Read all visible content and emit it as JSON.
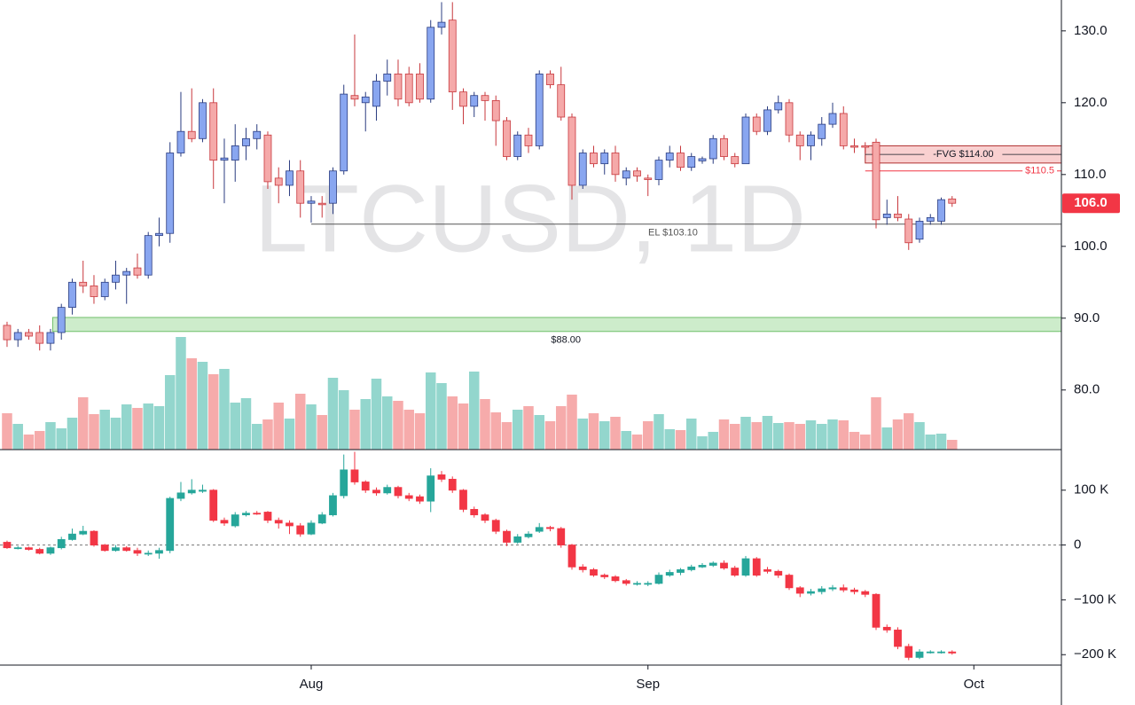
{
  "chart_data": [
    {
      "type": "candlestick",
      "title": "LTCUSD, 1D",
      "x": [
        0,
        1,
        2,
        3,
        4,
        5,
        6,
        7,
        8,
        9,
        10,
        11,
        12,
        13,
        14,
        15,
        16,
        17,
        18,
        19,
        20,
        21,
        22,
        23,
        24,
        25,
        26,
        27,
        28,
        29,
        30,
        31,
        32,
        33,
        34,
        35,
        36,
        37,
        38,
        39,
        40,
        41,
        42,
        43,
        44,
        45,
        46,
        47,
        48,
        49,
        50,
        51,
        52,
        53,
        54,
        55,
        56,
        57,
        58,
        59,
        60,
        61,
        62,
        63,
        64,
        65,
        66,
        67,
        68,
        69,
        70,
        71,
        72,
        73,
        74,
        75,
        76,
        77,
        78,
        79,
        80,
        81,
        82,
        83,
        84,
        85,
        86,
        87
      ],
      "open": [
        89,
        87,
        88,
        88,
        86.5,
        88,
        91.5,
        95,
        94.5,
        93,
        95,
        96,
        97,
        96,
        101.5,
        101.8,
        113,
        116,
        115,
        120,
        112,
        112,
        114,
        115,
        115.5,
        109.5,
        108.5,
        110.5,
        106,
        106,
        106,
        110.5,
        121,
        120,
        119.5,
        123,
        124,
        124,
        124,
        120.5,
        130.5,
        131.5,
        121.5,
        119.5,
        121,
        120.3,
        117.5,
        112.5,
        115.5,
        114,
        124,
        122.5,
        118,
        108.5,
        113,
        111.5,
        113,
        109.5,
        110.5,
        109.5,
        109.3,
        112,
        113,
        111,
        111.9,
        112.2,
        115,
        112.5,
        111.5,
        118,
        116,
        119,
        120,
        115.5,
        114,
        115,
        117,
        118.5,
        114,
        114,
        114.5,
        104,
        104.5,
        103.8,
        101,
        103.5,
        103.5,
        106.6
      ],
      "high": [
        89.5,
        88.5,
        88.5,
        89,
        88.5,
        92,
        95.5,
        98,
        96,
        95.5,
        98,
        97,
        99,
        102,
        104,
        114.5,
        121.5,
        122,
        120.5,
        122,
        115,
        117,
        116.5,
        117,
        116,
        111,
        112,
        112,
        107,
        107,
        111,
        122.5,
        129.5,
        121.5,
        124,
        126,
        126,
        125,
        125.5,
        131.5,
        134,
        134,
        122,
        121.5,
        121.5,
        121,
        118,
        116,
        116.5,
        124.5,
        124.5,
        125,
        118.5,
        113.5,
        114,
        113.5,
        114,
        111,
        111,
        110,
        112.5,
        114,
        114,
        113,
        112.5,
        115.5,
        115.5,
        113,
        118.5,
        118.5,
        119.5,
        121,
        120.5,
        116,
        116,
        118,
        120,
        119.5,
        115,
        114.5,
        115,
        106.5,
        107,
        104.5,
        104,
        104.5,
        106.8,
        107
      ],
      "low": [
        86,
        86,
        87,
        85.5,
        85.5,
        87,
        90.5,
        93.5,
        92,
        92.5,
        94,
        92,
        95.5,
        95.5,
        100,
        100.5,
        112.5,
        114.5,
        114.5,
        108,
        106,
        109,
        112,
        113.5,
        108,
        106,
        107,
        104,
        103.3,
        104,
        104.5,
        110,
        119.5,
        116,
        117.5,
        121,
        119.5,
        119.5,
        120,
        120,
        129.5,
        119,
        117,
        118,
        117.5,
        114,
        112,
        112,
        113,
        113.5,
        122,
        117.5,
        106.5,
        108,
        111,
        110,
        109,
        108.5,
        109,
        107,
        108.5,
        111,
        110.5,
        110.5,
        111.5,
        111.5,
        112,
        111,
        111.5,
        115.5,
        115.5,
        118.5,
        114.5,
        112,
        112,
        114,
        116.5,
        113.5,
        113,
        113,
        102.5,
        103,
        103.5,
        99.5,
        100.5,
        103,
        103,
        105.5
      ],
      "close": [
        87,
        88,
        87.5,
        86.5,
        88,
        91.5,
        95,
        94.5,
        93,
        95,
        96,
        96.5,
        96,
        101.5,
        101.8,
        113,
        116,
        115,
        120,
        112,
        112.3,
        114,
        115,
        116,
        109,
        108.5,
        110.5,
        106,
        106.3,
        105.8,
        110.5,
        121.2,
        120.5,
        120.8,
        123,
        124,
        120.5,
        120,
        120.5,
        130.5,
        131.2,
        121.5,
        119.5,
        121,
        120.3,
        117.5,
        112.5,
        115.5,
        114,
        124,
        122.5,
        118,
        108.5,
        113,
        111.5,
        113,
        110,
        110.5,
        109.8,
        109.3,
        112,
        113,
        111,
        112.5,
        112.2,
        115,
        112.5,
        111.5,
        118,
        116,
        119,
        120,
        115.5,
        114,
        115.5,
        117,
        118.5,
        114,
        113.8,
        113.8,
        103.7,
        104.5,
        104,
        100.5,
        103.5,
        104,
        106.5,
        106.0
      ],
      "volume": [
        41,
        29,
        17,
        21,
        31,
        24,
        36,
        59,
        40,
        45,
        36,
        51,
        47,
        52,
        49,
        84,
        127,
        103,
        99,
        85,
        91,
        53,
        58,
        29,
        34,
        53,
        35,
        63,
        51,
        39,
        81,
        67,
        45,
        57,
        80,
        60,
        55,
        45,
        41,
        87,
        75,
        60,
        52,
        88,
        57,
        42,
        31,
        45,
        49,
        39,
        32,
        49,
        62,
        35,
        41,
        32,
        37,
        21,
        17,
        32,
        40,
        23,
        22,
        35,
        15,
        20,
        34,
        29,
        37,
        31,
        38,
        30,
        31,
        29,
        33,
        29,
        34,
        33,
        20,
        17,
        59,
        25,
        34,
        41,
        31,
        17,
        18,
        11
      ],
      "up_color": "#89a6f0",
      "up_border": "#2a3c80",
      "down_color": "#f5a9a9",
      "down_border": "#c8383d",
      "volume_up_color": "#93d6cd",
      "volume_down_color": "#f6abab",
      "xlim": [
        -0.65,
        97.06
      ],
      "ylim": [
        71.7,
        134.3
      ],
      "yticks": [
        {
          "value": 80,
          "label": "80.0"
        },
        {
          "value": 90,
          "label": "90.0"
        },
        {
          "value": 100,
          "label": "100.0"
        },
        {
          "value": 110,
          "label": "110.0"
        },
        {
          "value": 120,
          "label": "120.0"
        },
        {
          "value": 130,
          "label": "130.0"
        }
      ],
      "zones": [
        {
          "label": "-FVG $114.00",
          "value": 114,
          "low": 111.6,
          "high": 114,
          "start": 79,
          "color": "#f9d0d0",
          "edge": "#b03030"
        },
        {
          "label": "$88.00",
          "value": 88,
          "low": 88.15,
          "high": 90.1,
          "start": 4.2,
          "color": "#cdeccb",
          "edge": "#6fbf6a"
        }
      ],
      "lines": [
        {
          "label": "$110.5",
          "value": 110.5,
          "start": 79,
          "color": "#f23645"
        },
        {
          "label": "EL $103.10",
          "value": 103.1,
          "start": 28,
          "color": "#555555"
        }
      ],
      "last_price": {
        "value": 106,
        "label": "106.0",
        "color": "#f23645"
      },
      "grid": false
    },
    {
      "type": "candlestick",
      "x": [
        0,
        1,
        2,
        3,
        4,
        5,
        6,
        7,
        8,
        9,
        10,
        11,
        12,
        13,
        14,
        15,
        16,
        17,
        18,
        19,
        20,
        21,
        22,
        23,
        24,
        25,
        26,
        27,
        28,
        29,
        30,
        31,
        32,
        33,
        34,
        35,
        36,
        37,
        38,
        39,
        40,
        41,
        42,
        43,
        44,
        45,
        46,
        47,
        48,
        49,
        50,
        51,
        52,
        53,
        54,
        55,
        56,
        57,
        58,
        59,
        60,
        61,
        62,
        63,
        64,
        65,
        66,
        67,
        68,
        69,
        70,
        71,
        72,
        73,
        74,
        75,
        76,
        77,
        78,
        79,
        80,
        81,
        82,
        83,
        84,
        85,
        86,
        87
      ],
      "open": [
        5000,
        -5000,
        -5000,
        -8000,
        -15000,
        -5000,
        10000,
        20000,
        25000,
        0,
        -10000,
        -5000,
        -10000,
        -15000,
        -15000,
        -10000,
        85000,
        95000,
        98000,
        100000,
        45000,
        35000,
        55000,
        58000,
        60000,
        45000,
        40000,
        35000,
        20000,
        40000,
        55000,
        90000,
        137000,
        115000,
        100000,
        95000,
        105000,
        90000,
        88000,
        80000,
        128000,
        120000,
        100000,
        65000,
        55000,
        45000,
        25000,
        5000,
        15000,
        25000,
        32000,
        30000,
        0,
        -40000,
        -45000,
        -55000,
        -58000,
        -65000,
        -70000,
        -70000,
        -70000,
        -55000,
        -50000,
        -45000,
        -40000,
        -37000,
        -33000,
        -42000,
        -55000,
        -25000,
        -45000,
        -48000,
        -55000,
        -78000,
        -88000,
        -85000,
        -80000,
        -78000,
        -82000,
        -85000,
        -90000,
        -150000,
        -155000,
        -185000,
        -205000,
        -195000,
        -195000,
        -195000
      ],
      "high": [
        8000,
        -2000,
        -3000,
        -5000,
        -3000,
        15000,
        30000,
        35000,
        27000,
        2000,
        0,
        -2000,
        -5000,
        -10000,
        -5000,
        88000,
        115000,
        120000,
        110000,
        102000,
        50000,
        60000,
        62000,
        62000,
        62000,
        50000,
        45000,
        40000,
        45000,
        60000,
        95000,
        165000,
        170000,
        118000,
        105000,
        110000,
        108000,
        95000,
        92000,
        140000,
        135000,
        125000,
        102000,
        70000,
        58000,
        48000,
        28000,
        20000,
        25000,
        40000,
        35000,
        33000,
        2000,
        -35000,
        -42000,
        -52000,
        -55000,
        -62000,
        -66000,
        -66000,
        -50000,
        -45000,
        -42000,
        -36000,
        -33000,
        -30000,
        -28000,
        -38000,
        -20000,
        -22000,
        -40000,
        -45000,
        -52000,
        -75000,
        -80000,
        -75000,
        -73000,
        -72000,
        -78000,
        -82000,
        -88000,
        -145000,
        -150000,
        -180000,
        -190000,
        -192000,
        -192000,
        -192000
      ],
      "low": [
        -7000,
        -8000,
        -10000,
        -17000,
        -18000,
        -8000,
        8000,
        18000,
        -3000,
        -12000,
        -12000,
        -12000,
        -20000,
        -20000,
        -25000,
        -15000,
        80000,
        92000,
        95000,
        42000,
        35000,
        32000,
        52000,
        55000,
        40000,
        30000,
        20000,
        15000,
        18000,
        38000,
        52000,
        85000,
        110000,
        95000,
        90000,
        92000,
        85000,
        80000,
        75000,
        60000,
        115000,
        95000,
        60000,
        50000,
        40000,
        20000,
        -2000,
        2000,
        12000,
        22000,
        25000,
        -5000,
        -45000,
        -50000,
        -58000,
        -62000,
        -68000,
        -74000,
        -74000,
        -75000,
        -72000,
        -58000,
        -55000,
        -48000,
        -42000,
        -40000,
        -45000,
        -58000,
        -58000,
        -58000,
        -52000,
        -60000,
        -82000,
        -95000,
        -92000,
        -90000,
        -84000,
        -86000,
        -90000,
        -95000,
        -155000,
        -160000,
        -190000,
        -210000,
        -208000,
        -198000,
        -198000,
        -200000
      ],
      "close": [
        -5000,
        -5000,
        -8000,
        -15000,
        -5000,
        10000,
        20000,
        25000,
        0,
        -10000,
        -5000,
        -10000,
        -15000,
        -15000,
        -10000,
        85000,
        95000,
        100000,
        100000,
        45000,
        40000,
        55000,
        58000,
        57000,
        45000,
        40000,
        35000,
        20000,
        40000,
        55000,
        90000,
        137000,
        115000,
        100000,
        95000,
        105000,
        90000,
        85000,
        80000,
        126000,
        120000,
        100000,
        65000,
        55000,
        45000,
        25000,
        5000,
        15000,
        20000,
        32000,
        30000,
        0,
        -40000,
        -45000,
        -55000,
        -58000,
        -65000,
        -70000,
        -70000,
        -70000,
        -55000,
        -50000,
        -45000,
        -40000,
        -37000,
        -33000,
        -42000,
        -55000,
        -25000,
        -55000,
        -48000,
        -55000,
        -78000,
        -88000,
        -85000,
        -80000,
        -78000,
        -82000,
        -85000,
        -90000,
        -150000,
        -155000,
        -185000,
        -205000,
        -195000,
        -195000,
        -195000,
        -197000
      ],
      "up_color": "#26a69a",
      "up_border": "#26a69a",
      "down_color": "#f23645",
      "down_border": "#f23645",
      "xlim": [
        -0.65,
        97.06
      ],
      "ylim": [
        -219000,
        174000
      ],
      "xticks": [
        {
          "value": 28,
          "label": "Aug"
        },
        {
          "value": 59,
          "label": "Sep"
        },
        {
          "value": 89,
          "label": "Oct"
        }
      ],
      "yticks": [
        {
          "value": -200000,
          "label": "−200 K"
        },
        {
          "value": -100000,
          "label": "−100 K"
        },
        0,
        {
          "value": 100000,
          "label": "100 K"
        }
      ],
      "baseline": 0,
      "grid": false
    }
  ]
}
